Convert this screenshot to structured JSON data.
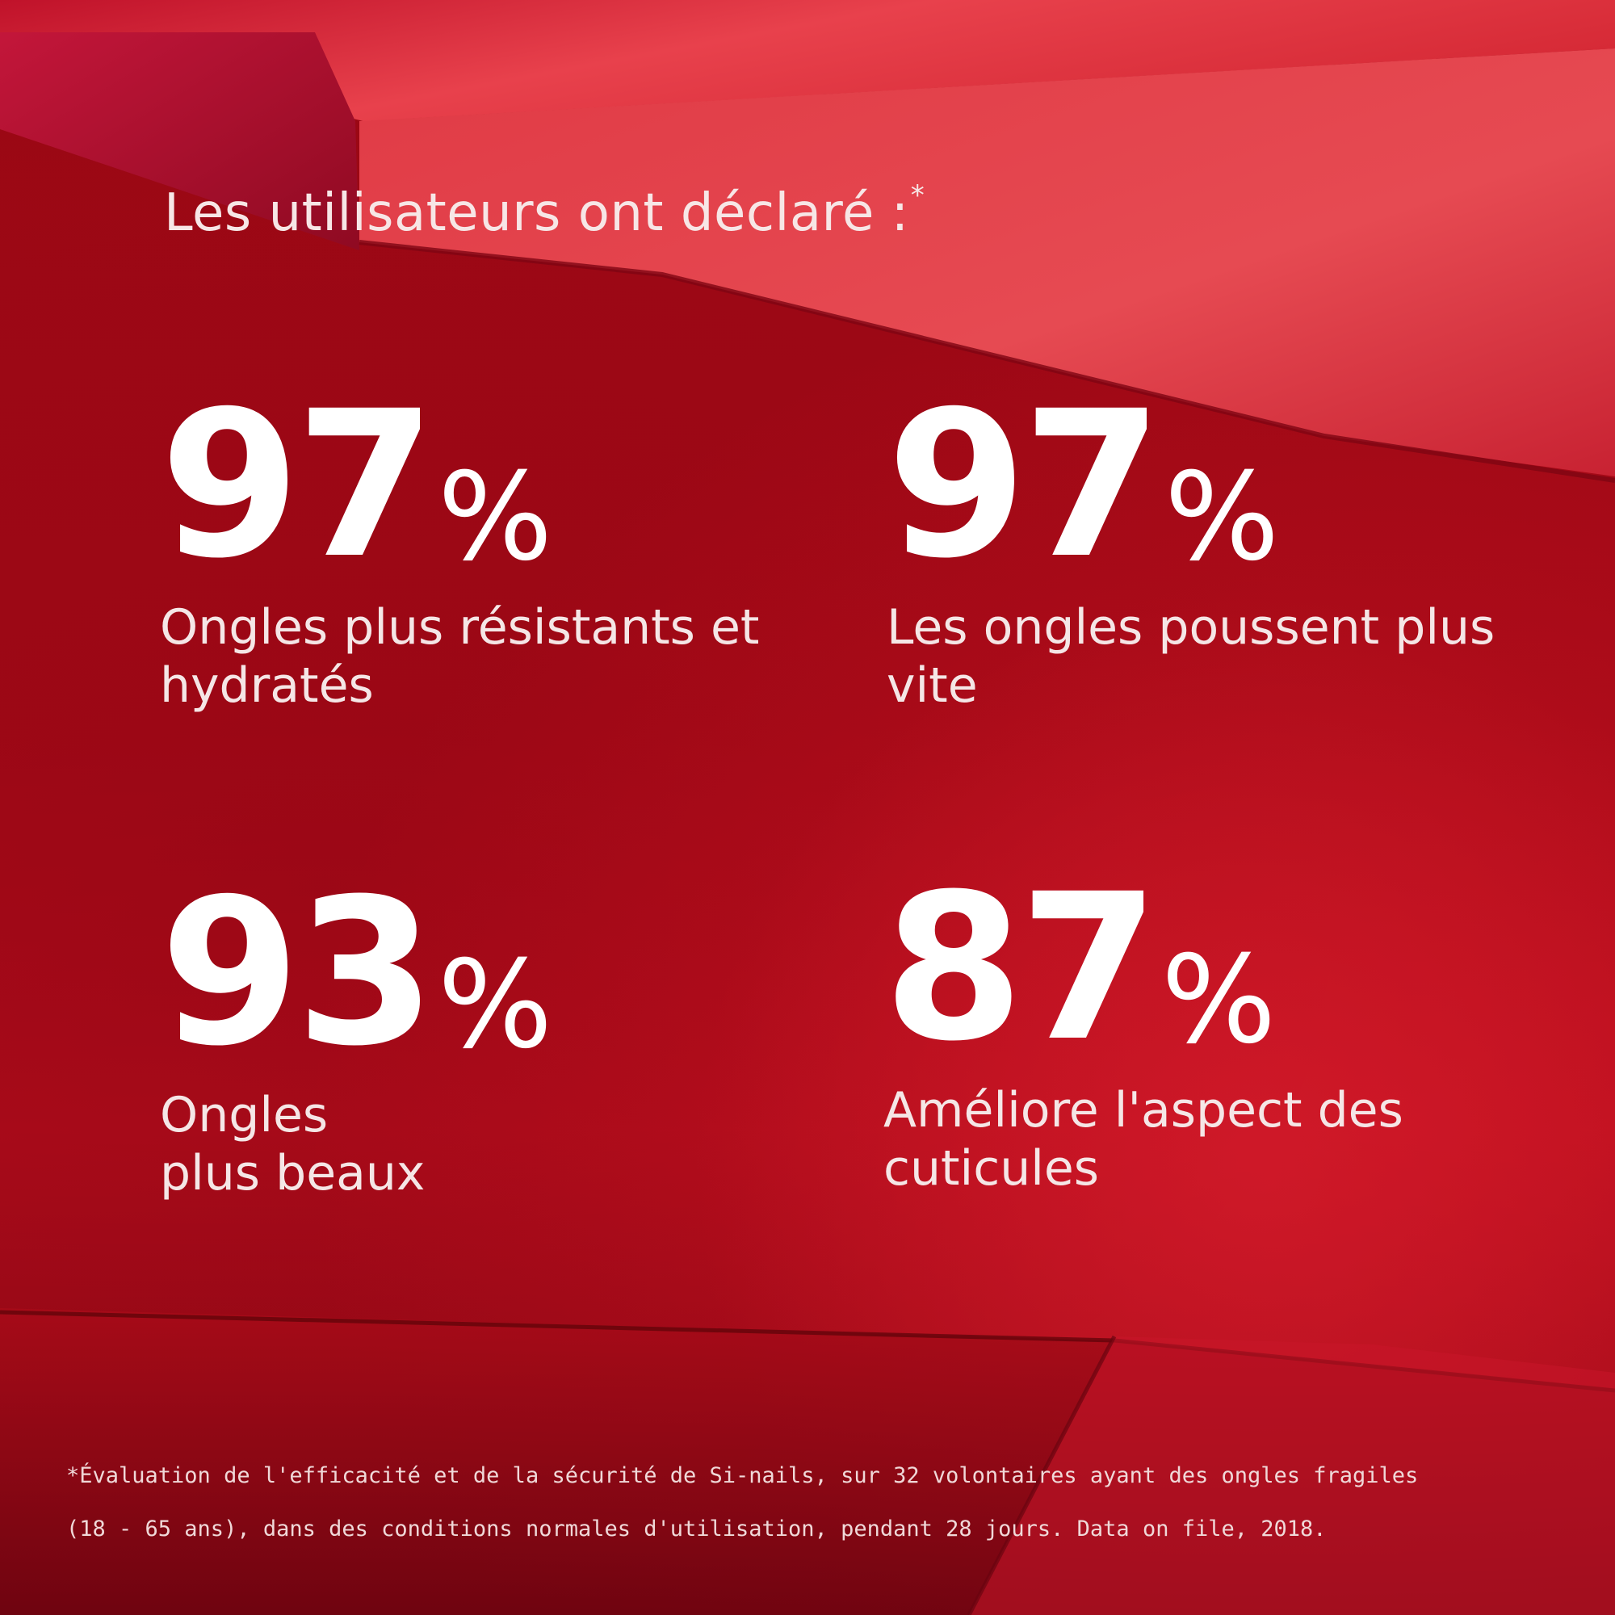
{
  "title": {
    "text": "Les utilisateurs ont déclaré :",
    "marker": "*"
  },
  "stats": [
    {
      "value": "97",
      "unit": "%",
      "label_lines": [
        "Ongles plus résistants et",
        "hydratés"
      ]
    },
    {
      "value": "97",
      "unit": "%",
      "label_lines": [
        "Les ongles poussent plus",
        "vite"
      ]
    },
    {
      "value": "93",
      "unit": "%",
      "label_lines": [
        "Ongles",
        "plus beaux"
      ]
    },
    {
      "value": "87",
      "unit": "%",
      "label_lines": [
        "Améliore l'aspect des",
        "cuticules"
      ]
    }
  ],
  "footnote": {
    "line1": "*Évaluation de l'efficacité et de la sécurité de Si-nails, sur 32 volontaires ayant des ongles fragiles",
    "line2": "(18 - 65 ans), dans des conditions normales d'utilisation, pendant 28 jours. Data on file, 2018."
  },
  "colors": {
    "background": "#9a0714",
    "accent_light": "#e8414c",
    "text": "#ffffff"
  }
}
